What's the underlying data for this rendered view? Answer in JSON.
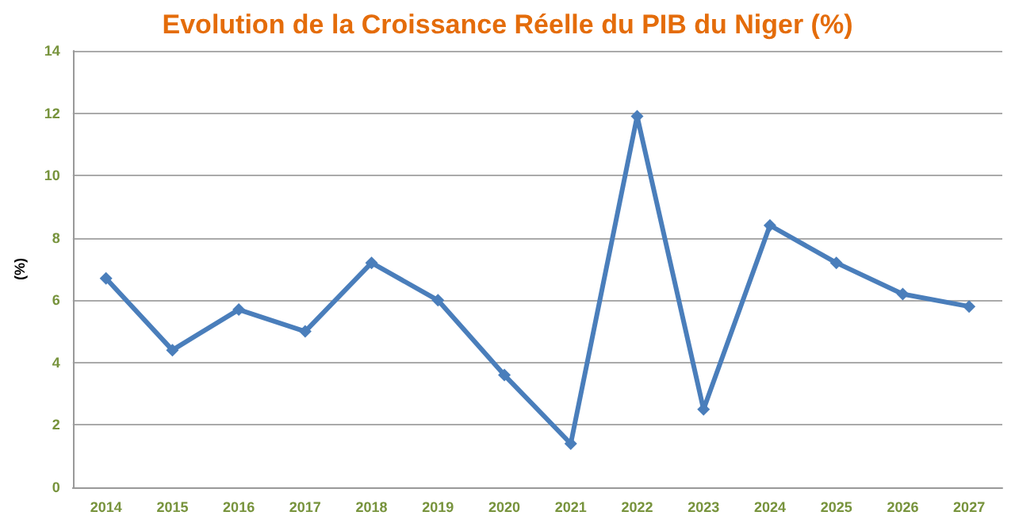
{
  "chart_data": {
    "type": "line",
    "title": "Evolution de la Croissance Réelle du PIB du Niger (%)",
    "ylabel": "(%)",
    "categories": [
      "2014",
      "2015",
      "2016",
      "2017",
      "2018",
      "2019",
      "2020",
      "2021",
      "2022",
      "2023",
      "2024",
      "2025",
      "2026",
      "2027"
    ],
    "series": [
      {
        "color": "#4a7ebb",
        "values": [
          6.7,
          4.4,
          5.7,
          5.0,
          7.2,
          6.0,
          3.6,
          1.4,
          11.9,
          2.5,
          8.4,
          7.2,
          6.2,
          5.8
        ]
      }
    ],
    "ylim": [
      0,
      14
    ],
    "yticks": [
      0,
      2,
      4,
      6,
      8,
      10,
      12,
      14
    ],
    "grid": "y",
    "marker": "diamond",
    "line_style": "solid"
  }
}
